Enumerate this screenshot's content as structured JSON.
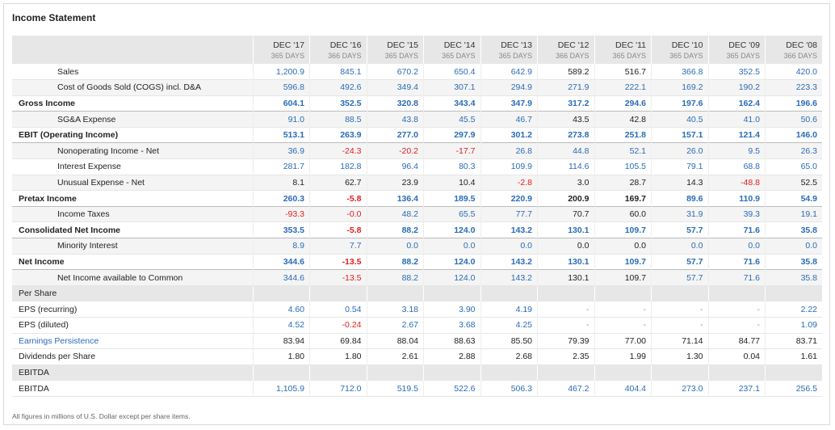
{
  "title": "Income Statement",
  "footnote": "All figures in millions of U.S. Dollar except per share items.",
  "colors": {
    "blue": "#2a6cb5",
    "red": "#e02020",
    "black": "#222222",
    "gray": "#999999"
  },
  "columns": [
    {
      "label": "DEC '17",
      "sub": "365 DAYS"
    },
    {
      "label": "DEC '16",
      "sub": "366 DAYS"
    },
    {
      "label": "DEC '15",
      "sub": "365 DAYS"
    },
    {
      "label": "DEC '14",
      "sub": "365 DAYS"
    },
    {
      "label": "DEC '13",
      "sub": "365 DAYS"
    },
    {
      "label": "DEC '12",
      "sub": "366 DAYS"
    },
    {
      "label": "DEC '11",
      "sub": "365 DAYS"
    },
    {
      "label": "DEC '10",
      "sub": "365 DAYS"
    },
    {
      "label": "DEC '09",
      "sub": "365 DAYS"
    },
    {
      "label": "DEC '08",
      "sub": "366 DAYS"
    }
  ],
  "rows": [
    {
      "label": "Sales",
      "style": "sub",
      "values": [
        [
          "1,200.9",
          "blue"
        ],
        [
          "845.1",
          "blue"
        ],
        [
          "670.2",
          "blue"
        ],
        [
          "650.4",
          "blue"
        ],
        [
          "642.9",
          "blue"
        ],
        [
          "589.2",
          "black"
        ],
        [
          "516.7",
          "black"
        ],
        [
          "366.8",
          "blue"
        ],
        [
          "352.5",
          "blue"
        ],
        [
          "420.0",
          "blue"
        ]
      ]
    },
    {
      "label": "Cost of Goods Sold (COGS) incl. D&A",
      "style": "sub shade",
      "values": [
        [
          "596.8",
          "blue"
        ],
        [
          "492.6",
          "blue"
        ],
        [
          "349.4",
          "blue"
        ],
        [
          "307.1",
          "blue"
        ],
        [
          "294.9",
          "blue"
        ],
        [
          "271.9",
          "blue"
        ],
        [
          "222.1",
          "blue"
        ],
        [
          "169.2",
          "blue"
        ],
        [
          "190.2",
          "blue"
        ],
        [
          "223.3",
          "blue"
        ]
      ]
    },
    {
      "label": "Gross Income",
      "style": "bold",
      "values": [
        [
          "604.1",
          "blue"
        ],
        [
          "352.5",
          "blue"
        ],
        [
          "320.8",
          "blue"
        ],
        [
          "343.4",
          "blue"
        ],
        [
          "347.9",
          "blue"
        ],
        [
          "317.2",
          "blue"
        ],
        [
          "294.6",
          "blue"
        ],
        [
          "197.6",
          "blue"
        ],
        [
          "162.4",
          "blue"
        ],
        [
          "196.6",
          "blue"
        ]
      ]
    },
    {
      "label": "SG&A Expense",
      "style": "sub shade",
      "values": [
        [
          "91.0",
          "blue"
        ],
        [
          "88.5",
          "blue"
        ],
        [
          "43.8",
          "blue"
        ],
        [
          "45.5",
          "blue"
        ],
        [
          "46.7",
          "blue"
        ],
        [
          "43.5",
          "black"
        ],
        [
          "42.8",
          "black"
        ],
        [
          "40.5",
          "blue"
        ],
        [
          "41.0",
          "blue"
        ],
        [
          "50.6",
          "blue"
        ]
      ]
    },
    {
      "label": "EBIT (Operating Income)",
      "style": "bold",
      "values": [
        [
          "513.1",
          "blue"
        ],
        [
          "263.9",
          "blue"
        ],
        [
          "277.0",
          "blue"
        ],
        [
          "297.9",
          "blue"
        ],
        [
          "301.2",
          "blue"
        ],
        [
          "273.8",
          "blue"
        ],
        [
          "251.8",
          "blue"
        ],
        [
          "157.1",
          "blue"
        ],
        [
          "121.4",
          "blue"
        ],
        [
          "146.0",
          "blue"
        ]
      ]
    },
    {
      "label": "Nonoperating Income - Net",
      "style": "sub shade",
      "values": [
        [
          "36.9",
          "blue"
        ],
        [
          "-24.3",
          "red"
        ],
        [
          "-20.2",
          "red"
        ],
        [
          "-17.7",
          "red"
        ],
        [
          "26.8",
          "blue"
        ],
        [
          "44.8",
          "blue"
        ],
        [
          "52.1",
          "blue"
        ],
        [
          "26.0",
          "blue"
        ],
        [
          "9.5",
          "blue"
        ],
        [
          "26.3",
          "blue"
        ]
      ]
    },
    {
      "label": "Interest Expense",
      "style": "sub",
      "values": [
        [
          "281.7",
          "blue"
        ],
        [
          "182.8",
          "blue"
        ],
        [
          "96.4",
          "blue"
        ],
        [
          "80.3",
          "blue"
        ],
        [
          "109.9",
          "blue"
        ],
        [
          "114.6",
          "blue"
        ],
        [
          "105.5",
          "blue"
        ],
        [
          "79.1",
          "blue"
        ],
        [
          "68.8",
          "blue"
        ],
        [
          "65.0",
          "blue"
        ]
      ]
    },
    {
      "label": "Unusual Expense - Net",
      "style": "sub shade",
      "values": [
        [
          "8.1",
          "black"
        ],
        [
          "62.7",
          "black"
        ],
        [
          "23.9",
          "black"
        ],
        [
          "10.4",
          "black"
        ],
        [
          "-2.8",
          "red"
        ],
        [
          "3.0",
          "black"
        ],
        [
          "28.7",
          "black"
        ],
        [
          "14.3",
          "black"
        ],
        [
          "-48.8",
          "red"
        ],
        [
          "52.5",
          "black"
        ]
      ]
    },
    {
      "label": "Pretax Income",
      "style": "bold",
      "values": [
        [
          "260.3",
          "blue"
        ],
        [
          "-5.8",
          "red"
        ],
        [
          "136.4",
          "blue"
        ],
        [
          "189.5",
          "blue"
        ],
        [
          "220.9",
          "blue"
        ],
        [
          "200.9",
          "black"
        ],
        [
          "169.7",
          "black"
        ],
        [
          "89.6",
          "blue"
        ],
        [
          "110.9",
          "blue"
        ],
        [
          "54.9",
          "blue"
        ]
      ]
    },
    {
      "label": "Income Taxes",
      "style": "sub shade",
      "values": [
        [
          "-93.3",
          "red"
        ],
        [
          "-0.0",
          "red"
        ],
        [
          "48.2",
          "blue"
        ],
        [
          "65.5",
          "blue"
        ],
        [
          "77.7",
          "blue"
        ],
        [
          "70.7",
          "black"
        ],
        [
          "60.0",
          "black"
        ],
        [
          "31.9",
          "blue"
        ],
        [
          "39.3",
          "blue"
        ],
        [
          "19.1",
          "blue"
        ]
      ]
    },
    {
      "label": "Consolidated Net Income",
      "style": "bold",
      "values": [
        [
          "353.5",
          "blue"
        ],
        [
          "-5.8",
          "red"
        ],
        [
          "88.2",
          "blue"
        ],
        [
          "124.0",
          "blue"
        ],
        [
          "143.2",
          "blue"
        ],
        [
          "130.1",
          "blue"
        ],
        [
          "109.7",
          "blue"
        ],
        [
          "57.7",
          "blue"
        ],
        [
          "71.6",
          "blue"
        ],
        [
          "35.8",
          "blue"
        ]
      ]
    },
    {
      "label": "Minority Interest",
      "style": "sub shade",
      "values": [
        [
          "8.9",
          "blue"
        ],
        [
          "7.7",
          "blue"
        ],
        [
          "0.0",
          "blue"
        ],
        [
          "0.0",
          "blue"
        ],
        [
          "0.0",
          "blue"
        ],
        [
          "0.0",
          "black"
        ],
        [
          "0.0",
          "black"
        ],
        [
          "0.0",
          "blue"
        ],
        [
          "0.0",
          "blue"
        ],
        [
          "0.0",
          "blue"
        ]
      ]
    },
    {
      "label": "Net Income",
      "style": "bold",
      "values": [
        [
          "344.6",
          "blue"
        ],
        [
          "-13.5",
          "red"
        ],
        [
          "88.2",
          "blue"
        ],
        [
          "124.0",
          "blue"
        ],
        [
          "143.2",
          "blue"
        ],
        [
          "130.1",
          "blue"
        ],
        [
          "109.7",
          "blue"
        ],
        [
          "57.7",
          "blue"
        ],
        [
          "71.6",
          "blue"
        ],
        [
          "35.8",
          "blue"
        ]
      ]
    },
    {
      "label": "Net Income available to Common",
      "style": "sub shade",
      "values": [
        [
          "344.6",
          "blue"
        ],
        [
          "-13.5",
          "red"
        ],
        [
          "88.2",
          "blue"
        ],
        [
          "124.0",
          "blue"
        ],
        [
          "143.2",
          "blue"
        ],
        [
          "130.1",
          "black"
        ],
        [
          "109.7",
          "black"
        ],
        [
          "57.7",
          "blue"
        ],
        [
          "71.6",
          "blue"
        ],
        [
          "35.8",
          "blue"
        ]
      ]
    },
    {
      "label": "Per Share",
      "style": "section",
      "values": []
    },
    {
      "label": "EPS (recurring)",
      "style": "plain",
      "values": [
        [
          "4.60",
          "blue"
        ],
        [
          "0.54",
          "blue"
        ],
        [
          "3.18",
          "blue"
        ],
        [
          "3.90",
          "blue"
        ],
        [
          "4.19",
          "blue"
        ],
        [
          "-",
          "gray"
        ],
        [
          "-",
          "gray"
        ],
        [
          "-",
          "gray"
        ],
        [
          "-",
          "gray"
        ],
        [
          "2.22",
          "blue"
        ]
      ]
    },
    {
      "label": "EPS (diluted)",
      "style": "plain",
      "values": [
        [
          "4.52",
          "blue"
        ],
        [
          "-0.24",
          "red"
        ],
        [
          "2.67",
          "blue"
        ],
        [
          "3.68",
          "blue"
        ],
        [
          "4.25",
          "blue"
        ],
        [
          "-",
          "gray"
        ],
        [
          "-",
          "gray"
        ],
        [
          "-",
          "gray"
        ],
        [
          "-",
          "gray"
        ],
        [
          "1.09",
          "blue"
        ]
      ]
    },
    {
      "label": "Earnings Persistence",
      "style": "plain link",
      "values": [
        [
          "83.94",
          "black"
        ],
        [
          "69.84",
          "black"
        ],
        [
          "88.04",
          "black"
        ],
        [
          "88.63",
          "black"
        ],
        [
          "85.50",
          "black"
        ],
        [
          "79.39",
          "black"
        ],
        [
          "77.00",
          "black"
        ],
        [
          "71.14",
          "black"
        ],
        [
          "84.77",
          "black"
        ],
        [
          "83.71",
          "black"
        ]
      ]
    },
    {
      "label": "Dividends per Share",
      "style": "plain",
      "values": [
        [
          "1.80",
          "black"
        ],
        [
          "1.80",
          "black"
        ],
        [
          "2.61",
          "black"
        ],
        [
          "2.88",
          "black"
        ],
        [
          "2.68",
          "black"
        ],
        [
          "2.35",
          "black"
        ],
        [
          "1.99",
          "black"
        ],
        [
          "1.30",
          "black"
        ],
        [
          "0.04",
          "black"
        ],
        [
          "1.61",
          "black"
        ]
      ]
    },
    {
      "label": "EBITDA",
      "style": "section",
      "values": []
    },
    {
      "label": "EBITDA",
      "style": "plain",
      "values": [
        [
          "1,105.9",
          "blue"
        ],
        [
          "712.0",
          "blue"
        ],
        [
          "519.5",
          "blue"
        ],
        [
          "522.6",
          "blue"
        ],
        [
          "506.3",
          "blue"
        ],
        [
          "467.2",
          "blue"
        ],
        [
          "404.4",
          "blue"
        ],
        [
          "273.0",
          "blue"
        ],
        [
          "237.1",
          "blue"
        ],
        [
          "256.5",
          "blue"
        ]
      ]
    }
  ]
}
